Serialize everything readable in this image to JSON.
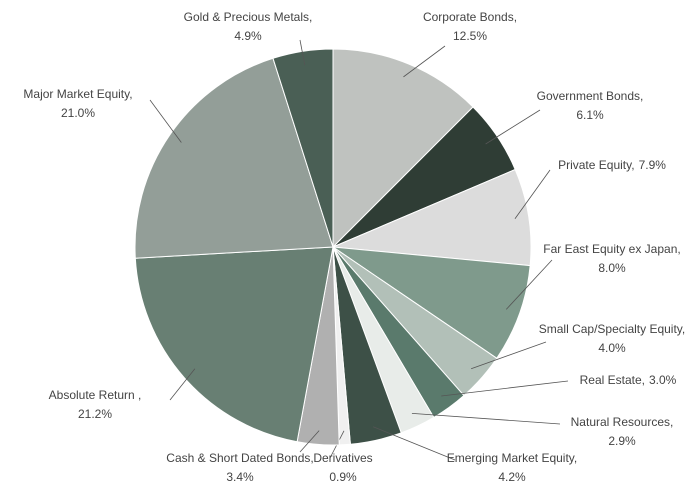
{
  "chart_data": {
    "type": "pie",
    "categories": [
      "Corporate Bonds,",
      "Government Bonds,",
      "Private Equity,",
      "Far East Equity ex Japan,",
      "Small Cap/Specialty Equity,",
      "Real Estate,",
      "Natural Resources,",
      "Emerging Market Equity,",
      "Derivatives",
      "Cash & Short Dated Bonds,",
      "Absolute Return ,",
      "Major Market Equity,",
      "Gold & Precious Metals,"
    ],
    "values": [
      12.5,
      6.1,
      7.9,
      8.0,
      4.0,
      3.0,
      2.9,
      4.2,
      0.9,
      3.4,
      21.2,
      21.0,
      4.9
    ],
    "value_labels": [
      "12.5%",
      "6.1%",
      "7.9%",
      "8.0%",
      "4.0%",
      "3.0%",
      "2.9%",
      "4.2%",
      "0.9%",
      "3.4%",
      "21.2%",
      "21.0%",
      "4.9%"
    ],
    "colors": [
      "#bfc2bf",
      "#2f3d35",
      "#dcdcdc",
      "#7f9a8c",
      "#b2c0b8",
      "#5a7a6c",
      "#e8ece9",
      "#3d5047",
      "#f0f0f0",
      "#b0b0b0",
      "#687f73",
      "#939e98",
      "#4a5f55"
    ]
  }
}
